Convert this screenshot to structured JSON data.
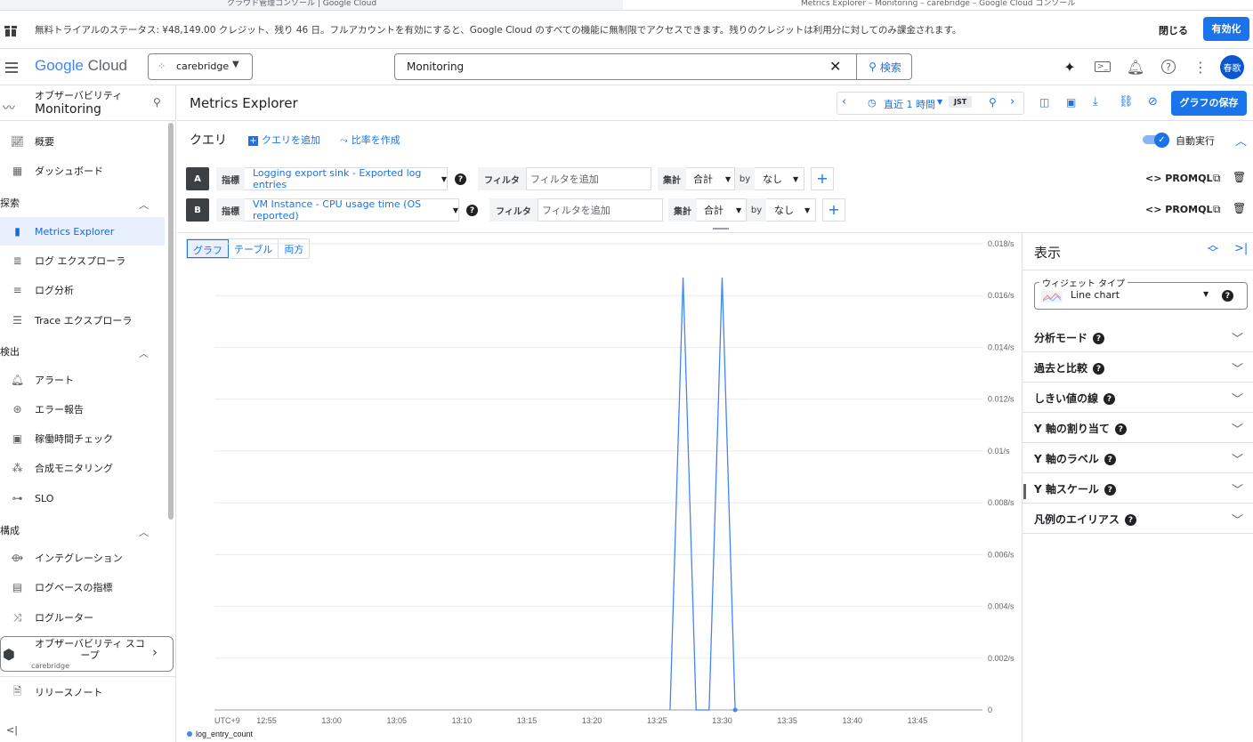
{
  "browser_tabs": [
    {
      "title": "クラウド管理コンソール | Google Cloud",
      "active": false
    },
    {
      "title": "Metrics Explorer – Monitoring – carebridge – Google Cloud コンソール",
      "active": true
    }
  ],
  "banner": {
    "text": "無料トライアルのステータス: ¥48,149.00 クレジット、残り 46 日。フルアカウントを有効にすると、Google Cloud のすべての機能に無制限でアクセスできます。残りのクレジットは利用分に対してのみ課金されます。",
    "close_label": "閉じる",
    "activate_label": "有効化"
  },
  "header": {
    "logo_google": "Google",
    "logo_cloud": "Cloud",
    "project": "carebridge",
    "search_value": "Monitoring",
    "search_button": "検索",
    "avatar": "春歌"
  },
  "nav": {
    "product_subtitle": "オブザーバビリティ",
    "product_title": "Monitoring",
    "items_top": [
      "概要",
      "ダッシュボード"
    ],
    "section_explore": "探索",
    "items_explore": [
      "Metrics Explorer",
      "ログ エクスプローラ",
      "ログ分析",
      "Trace エクスプローラ"
    ],
    "section_detect": "検出",
    "items_detect": [
      "アラート",
      "エラー報告",
      "稼働時間チェック",
      "合成モニタリング",
      "SLO"
    ],
    "section_config": "構成",
    "items_config": [
      "インテグレーション",
      "ログベースの指標",
      "ログルーター"
    ],
    "scope_title": "オブザーバビリティ スコープ",
    "scope_project": "carebridge",
    "release_notes": "リリースノート",
    "collapse": "<|"
  },
  "toolbar": {
    "page_title": "Metrics Explorer",
    "time_range": "直近 1 時間",
    "timezone": "JST",
    "save_chart": "グラフの保存"
  },
  "query": {
    "title": "クエリ",
    "add_query": "クエリを追加",
    "create_ratio": "比率を作成",
    "auto_run": "自動実行",
    "rows": [
      {
        "letter": "A",
        "metric_label": "指標",
        "metric": "Logging export sink - Exported log entries",
        "filter_label": "フィルタ",
        "filter_placeholder": "フィルタを追加",
        "agg_label": "集計",
        "agg": "合計",
        "by_label": "by",
        "by": "なし",
        "promql": "PROMQL"
      },
      {
        "letter": "B",
        "metric_label": "指標",
        "metric": "VM Instance - CPU usage time (OS reported)",
        "filter_label": "フィルタ",
        "filter_placeholder": "フィルタを追加",
        "agg_label": "集計",
        "agg": "合計",
        "by_label": "by",
        "by": "なし",
        "promql": "PROMQL"
      }
    ]
  },
  "view_tabs": [
    "グラフ",
    "テーブル",
    "両方"
  ],
  "right_panel": {
    "title": "表示",
    "widget_type_label": "ウィジェット タイプ",
    "widget_type": "Line chart",
    "sections": [
      "分析モード",
      "過去と比較",
      "しきい値の線",
      "Y 軸の割り当て",
      "Y 軸のラベル",
      "Y 軸スケール",
      "凡例のエイリアス"
    ]
  },
  "colors": {
    "accent": "#1a73e8",
    "series": "#4285f4"
  },
  "chart_data": {
    "type": "line",
    "timezone_label": "UTC+9",
    "x_ticks": [
      "12:55",
      "13:00",
      "13:05",
      "13:10",
      "13:15",
      "13:20",
      "13:25",
      "13:30",
      "13:35",
      "13:40",
      "13:45"
    ],
    "y_ticks": [
      "0",
      "0.002/s",
      "0.004/s",
      "0.006/s",
      "0.008/s",
      "0.01/s",
      "0.012/s",
      "0.014/s",
      "0.016/s",
      "0.018/s"
    ],
    "ylim": [
      0,
      0.018
    ],
    "xlim": [
      "12:51",
      "13:50"
    ],
    "series": [
      {
        "name": "log_entry_count",
        "points": [
          {
            "t": "13:26",
            "v": 0
          },
          {
            "t": "13:27",
            "v": 0.0167
          },
          {
            "t": "13:28",
            "v": 0
          },
          {
            "t": "13:29",
            "v": 0
          },
          {
            "t": "13:30",
            "v": 0.0167
          },
          {
            "t": "13:31",
            "v": 0
          }
        ]
      }
    ]
  }
}
